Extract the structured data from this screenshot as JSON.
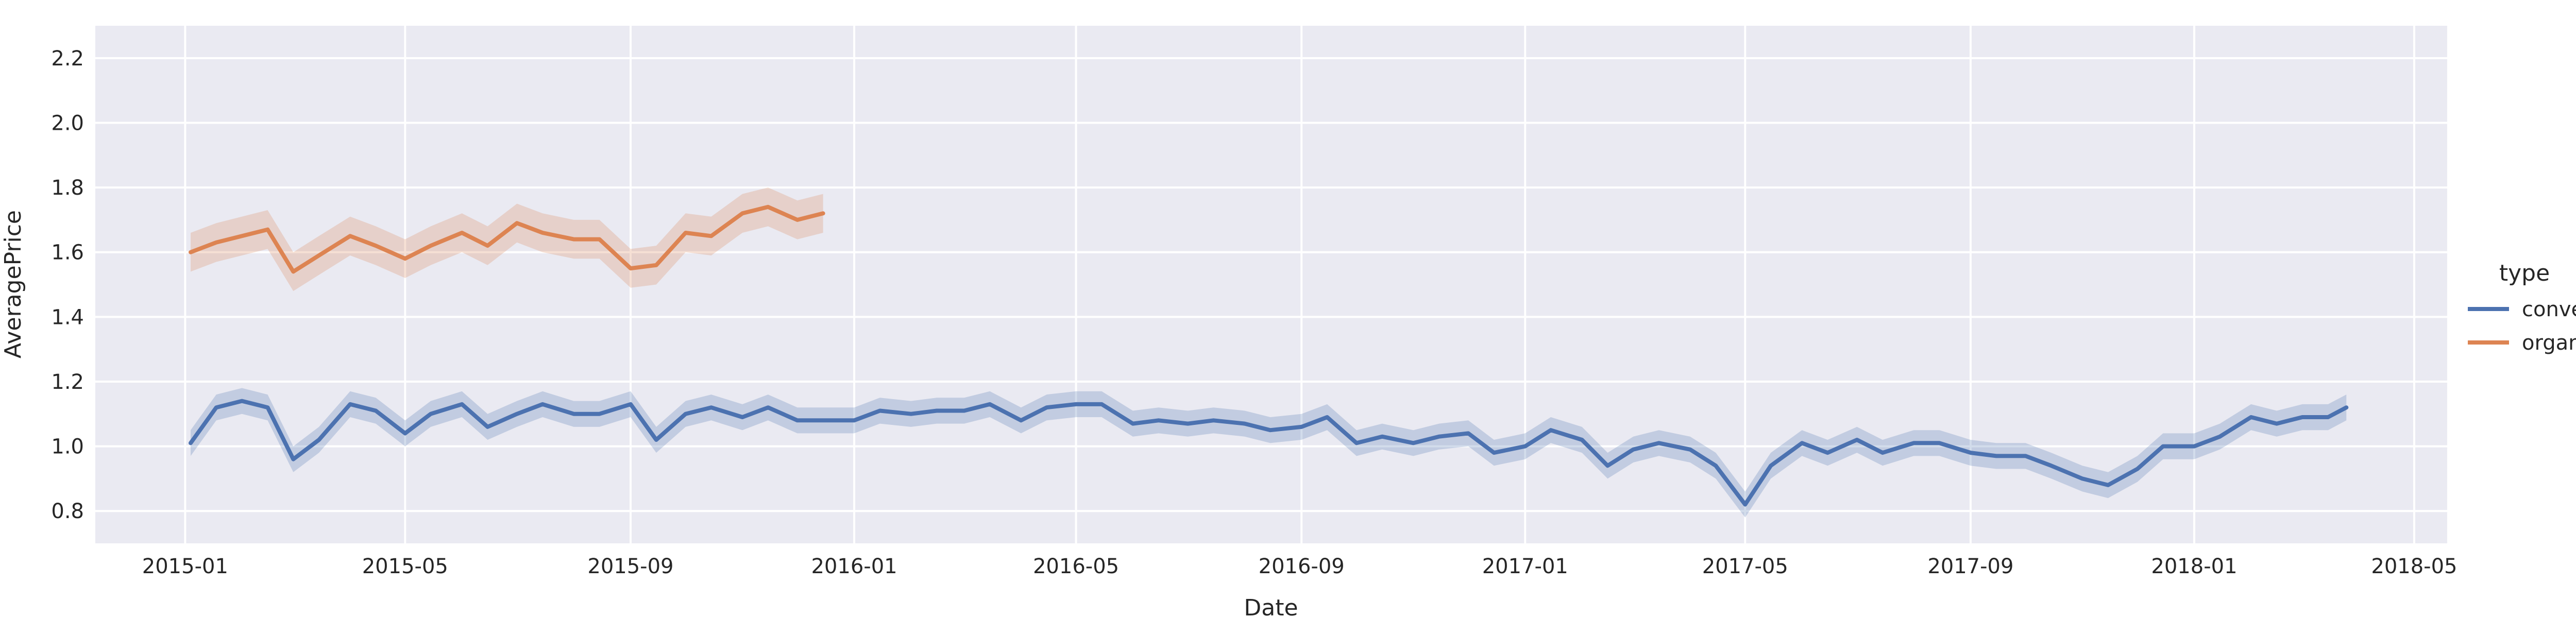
{
  "chart_data": {
    "type": "line",
    "title": "",
    "xlabel": "Date",
    "ylabel": "AveragePrice",
    "xlim": [
      "2014-11-13",
      "2018-05-19"
    ],
    "ylim": [
      0.7,
      2.3
    ],
    "x_ticks": [
      "2015-01",
      "2015-05",
      "2015-09",
      "2016-01",
      "2016-05",
      "2016-09",
      "2017-01",
      "2017-05",
      "2017-09",
      "2018-01",
      "2018-05"
    ],
    "y_ticks": [
      "0.8",
      "1.0",
      "1.2",
      "1.4",
      "1.6",
      "1.8",
      "2.0",
      "2.2"
    ],
    "grid": true,
    "background": "#eaeaf2",
    "legend": {
      "title": "type",
      "placement": "right"
    },
    "series": [
      {
        "name": "conventional",
        "color": "#4c72b0",
        "ci": 0.04,
        "points": [
          [
            "2015-01-04",
            1.01
          ],
          [
            "2015-01-18",
            1.12
          ],
          [
            "2015-02-01",
            1.14
          ],
          [
            "2015-02-15",
            1.12
          ],
          [
            "2015-03-01",
            0.96
          ],
          [
            "2015-03-15",
            1.02
          ],
          [
            "2015-04-01",
            1.13
          ],
          [
            "2015-04-15",
            1.11
          ],
          [
            "2015-05-01",
            1.04
          ],
          [
            "2015-05-15",
            1.1
          ],
          [
            "2015-06-01",
            1.13
          ],
          [
            "2015-06-15",
            1.06
          ],
          [
            "2015-07-01",
            1.1
          ],
          [
            "2015-07-15",
            1.13
          ],
          [
            "2015-08-01",
            1.1
          ],
          [
            "2015-08-15",
            1.1
          ],
          [
            "2015-09-01",
            1.13
          ],
          [
            "2015-09-15",
            1.02
          ],
          [
            "2015-10-01",
            1.1
          ],
          [
            "2015-10-15",
            1.12
          ],
          [
            "2015-11-01",
            1.09
          ],
          [
            "2015-11-15",
            1.12
          ],
          [
            "2015-12-01",
            1.08
          ],
          [
            "2015-12-15",
            1.08
          ],
          [
            "2016-01-01",
            1.08
          ],
          [
            "2016-01-15",
            1.11
          ],
          [
            "2016-02-01",
            1.1
          ],
          [
            "2016-02-15",
            1.11
          ],
          [
            "2016-03-01",
            1.11
          ],
          [
            "2016-03-15",
            1.13
          ],
          [
            "2016-04-01",
            1.08
          ],
          [
            "2016-04-15",
            1.12
          ],
          [
            "2016-05-01",
            1.13
          ],
          [
            "2016-05-15",
            1.13
          ],
          [
            "2016-06-01",
            1.07
          ],
          [
            "2016-06-15",
            1.08
          ],
          [
            "2016-07-01",
            1.07
          ],
          [
            "2016-07-15",
            1.08
          ],
          [
            "2016-08-01",
            1.07
          ],
          [
            "2016-08-15",
            1.05
          ],
          [
            "2016-09-01",
            1.06
          ],
          [
            "2016-09-15",
            1.09
          ],
          [
            "2016-10-01",
            1.01
          ],
          [
            "2016-10-15",
            1.03
          ],
          [
            "2016-11-01",
            1.01
          ],
          [
            "2016-11-15",
            1.03
          ],
          [
            "2016-12-01",
            1.04
          ],
          [
            "2016-12-15",
            0.98
          ],
          [
            "2017-01-01",
            1.0
          ],
          [
            "2017-01-15",
            1.05
          ],
          [
            "2017-02-01",
            1.02
          ],
          [
            "2017-02-15",
            0.94
          ],
          [
            "2017-03-01",
            0.99
          ],
          [
            "2017-03-15",
            1.01
          ],
          [
            "2017-04-01",
            0.99
          ],
          [
            "2017-04-15",
            0.94
          ],
          [
            "2017-05-01",
            0.82
          ],
          [
            "2017-05-15",
            0.94
          ],
          [
            "2017-06-01",
            1.01
          ],
          [
            "2017-06-15",
            0.98
          ],
          [
            "2017-07-01",
            1.02
          ],
          [
            "2017-07-15",
            0.98
          ],
          [
            "2017-08-01",
            1.01
          ],
          [
            "2017-08-15",
            1.01
          ],
          [
            "2017-09-01",
            0.98
          ],
          [
            "2017-09-15",
            0.97
          ],
          [
            "2017-10-01",
            0.97
          ],
          [
            "2017-10-15",
            0.94
          ],
          [
            "2017-11-01",
            0.9
          ],
          [
            "2017-11-15",
            0.88
          ],
          [
            "2017-12-01",
            0.93
          ],
          [
            "2017-12-15",
            1.0
          ],
          [
            "2018-01-01",
            1.0
          ],
          [
            "2018-01-15",
            1.03
          ],
          [
            "2018-02-01",
            1.09
          ],
          [
            "2018-02-15",
            1.07
          ],
          [
            "2018-03-01",
            1.09
          ],
          [
            "2018-03-15",
            1.09
          ],
          [
            "2018-03-25",
            1.12
          ]
        ]
      },
      {
        "name": "organic",
        "color": "#dd8452",
        "ci": 0.06,
        "points": [
          [
            "2015-01-04",
            1.6
          ],
          [
            "2015-01-18",
            1.63
          ],
          [
            "2015-02-01",
            1.65
          ],
          [
            "2015-02-15",
            1.67
          ],
          [
            "2015-03-01",
            1.54
          ],
          [
            "2015-03-15",
            1.59
          ],
          [
            "2015-04-01",
            1.65
          ],
          [
            "2015-04-15",
            1.62
          ],
          [
            "2015-05-01",
            1.58
          ],
          [
            "2015-05-15",
            1.62
          ],
          [
            "2015-06-01",
            1.66
          ],
          [
            "2015-06-15",
            1.62
          ],
          [
            "2015-07-01",
            1.69
          ],
          [
            "2015-07-15",
            1.66
          ],
          [
            "2015-08-01",
            1.64
          ],
          [
            "2015-08-15",
            1.64
          ],
          [
            "2015-09-01",
            1.55
          ],
          [
            "2015-09-15",
            1.56
          ],
          [
            "2015-10-01",
            1.66
          ],
          [
            "2015-10-15",
            1.65
          ],
          [
            "2015-11-01",
            1.72
          ],
          [
            "2015-11-15",
            1.74
          ],
          [
            "2015-12-01",
            1.7
          ],
          [
            "2015-12-15",
            1.72
          ]
        ]
      }
    ]
  }
}
